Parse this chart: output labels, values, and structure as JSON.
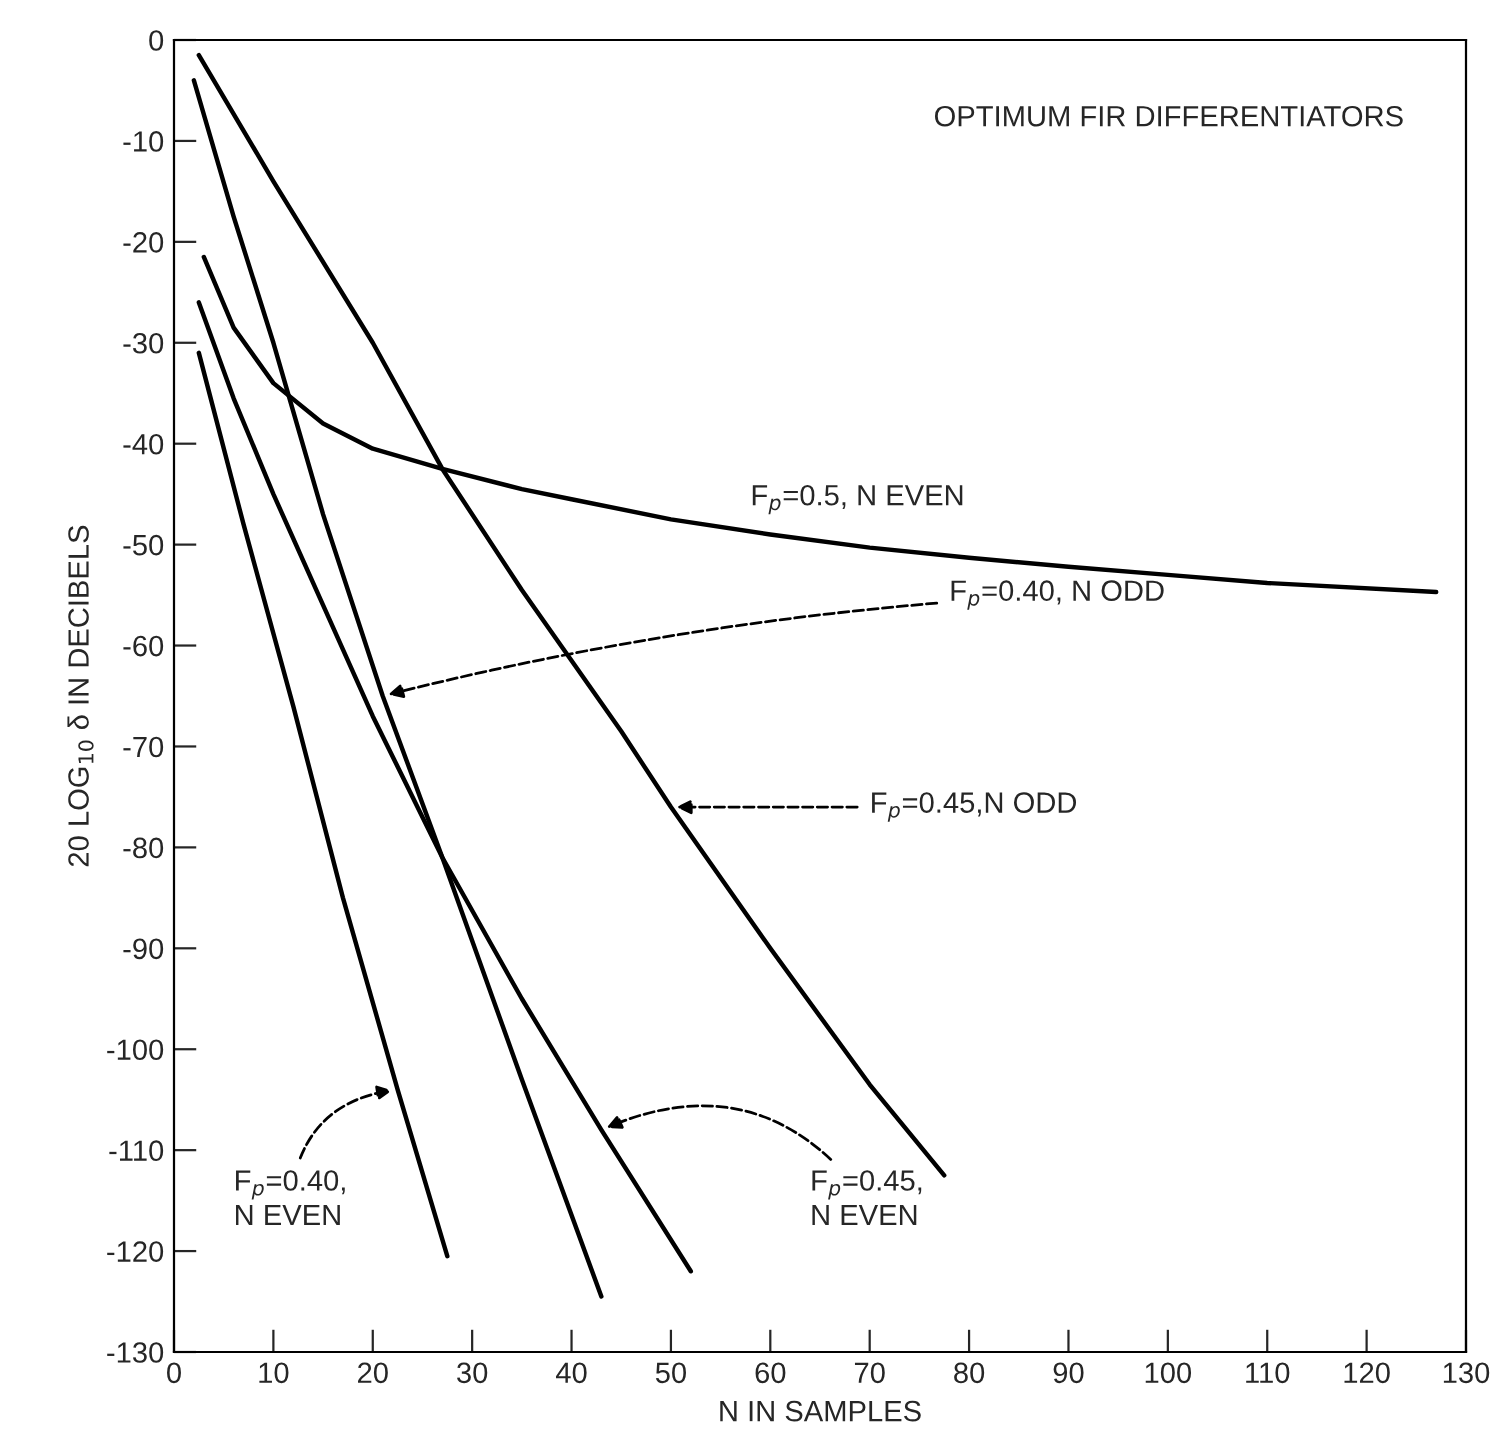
{
  "chart_data": {
    "type": "line",
    "title": "OPTIMUM FIR DIFFERENTIATORS",
    "xlabel": "N IN SAMPLES",
    "ylabel": "20 LOG$_{10}$ δ IN DECIBELS",
    "series": [
      {
        "color": "#000000",
        "x": [
          3,
          6,
          10,
          15,
          20,
          27,
          35,
          40,
          50,
          60,
          70,
          80,
          90,
          100,
          110,
          127
        ],
        "values": [
          -21.5,
          -28.5,
          -34,
          -38,
          -40.5,
          -42.5,
          -44.5,
          -45.5,
          -47.5,
          -49,
          -50.3,
          -51.3,
          -52.2,
          -53,
          -53.8,
          -54.7
        ]
      },
      {
        "color": "#000000",
        "x": [
          2.5,
          10,
          20,
          27,
          35,
          45,
          50,
          60,
          70,
          77.5
        ],
        "values": [
          -1.5,
          -14,
          -30,
          -42.5,
          -54.5,
          -68.5,
          -76,
          -90,
          -103.5,
          -112.5
        ]
      },
      {
        "color": "#000000",
        "x": [
          2,
          6,
          10,
          15,
          21,
          27,
          35,
          43
        ],
        "values": [
          -4,
          -17.5,
          -30,
          -47,
          -65,
          -81,
          -103,
          -124.5
        ]
      },
      {
        "color": "#000000",
        "x": [
          2.5,
          6,
          10,
          15,
          20,
          27,
          35,
          43,
          52
        ],
        "values": [
          -26,
          -35.5,
          -45,
          -56,
          -67,
          -81,
          -95,
          -108,
          -122
        ]
      },
      {
        "color": "#000000",
        "x": [
          2.5,
          7,
          12,
          17,
          22.5,
          27.5
        ],
        "values": [
          -31,
          -48,
          -66,
          -85,
          -104,
          -120.5
        ]
      }
    ],
    "xlim": [
      0,
      130
    ],
    "xticks": [
      0,
      10,
      20,
      30,
      40,
      50,
      60,
      70,
      80,
      90,
      100,
      110,
      120,
      130
    ],
    "ylim": [
      -130,
      0
    ],
    "yticks": [
      0,
      -10,
      -20,
      -30,
      -40,
      -50,
      -60,
      -70,
      -80,
      -90,
      -100,
      -110,
      -120,
      -130
    ],
    "annotations": [
      {
        "text": "F$_{p}$=0.5, N EVEN",
        "x": 60,
        "y": -49
      },
      {
        "text": "F$_{p}$=0.40, N ODD",
        "x": 21,
        "y": -65
      },
      {
        "text": "F$_{p}$=0.45,N ODD",
        "x": 50,
        "y": -76
      },
      {
        "text": "F$_{p}$=0.40,\nN EVEN",
        "x": 22.5,
        "y": -104
      },
      {
        "text": "F$_{p}$=0.45,\nN EVEN",
        "x": 43,
        "y": -108
      }
    ],
    "grid": false,
    "marker": "none",
    "line_style": "solid"
  }
}
